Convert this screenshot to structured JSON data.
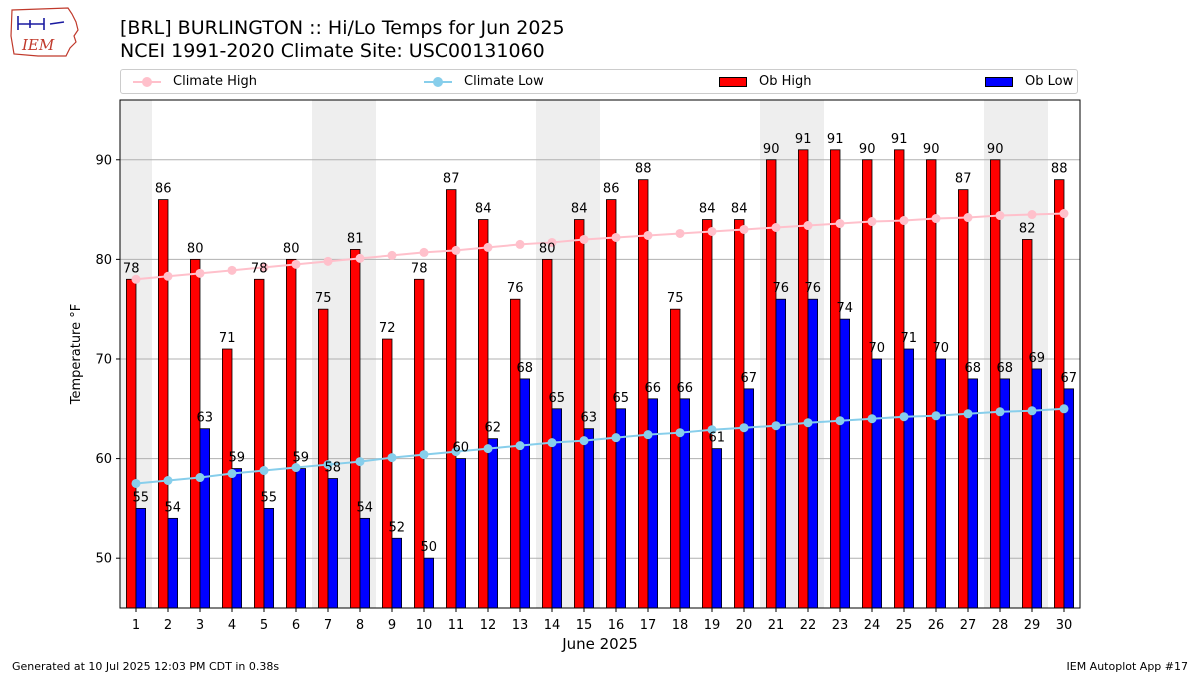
{
  "header": {
    "logo_text": "IEM",
    "title_line1": "[BRL] BURLINGTON :: Hi/Lo Temps for Jun 2025",
    "title_line2": "NCEI 1991-2020 Climate Site: USC00131060"
  },
  "legend": {
    "climate_high": "Climate High",
    "climate_low": "Climate Low",
    "ob_high": "Ob High",
    "ob_low": "Ob Low"
  },
  "colors": {
    "ob_high": "#ff0000",
    "ob_low": "#0000ff",
    "climate_high": "#ffc0cb",
    "climate_low": "#87ceeb",
    "weekend_shade": "#eeeeee",
    "grid": "#b0b0b0"
  },
  "chart_data": {
    "type": "bar",
    "xlabel": "June 2025",
    "ylabel": "Temperature °F",
    "ylim": [
      45,
      96
    ],
    "yticks": [
      50,
      60,
      70,
      80,
      90
    ],
    "grid": "horizontal",
    "legend_position": "top",
    "categories": [
      "1",
      "2",
      "3",
      "4",
      "5",
      "6",
      "7",
      "8",
      "9",
      "10",
      "11",
      "12",
      "13",
      "14",
      "15",
      "16",
      "17",
      "18",
      "19",
      "20",
      "21",
      "22",
      "23",
      "24",
      "25",
      "26",
      "27",
      "28",
      "29",
      "30"
    ],
    "shaded_days": [
      1,
      7,
      8,
      14,
      15,
      21,
      22,
      28,
      29
    ],
    "series": [
      {
        "name": "Ob High",
        "type": "bar",
        "values": [
          78,
          86,
          80,
          71,
          78,
          80,
          75,
          81,
          72,
          78,
          87,
          84,
          76,
          80,
          84,
          86,
          88,
          75,
          84,
          84,
          90,
          91,
          91,
          90,
          91,
          90,
          87,
          90,
          82,
          88
        ]
      },
      {
        "name": "Ob Low",
        "type": "bar",
        "values": [
          55,
          54,
          63,
          59,
          55,
          59,
          58,
          54,
          52,
          50,
          60,
          62,
          68,
          65,
          63,
          65,
          66,
          66,
          61,
          67,
          76,
          76,
          74,
          70,
          71,
          70,
          68,
          68,
          69,
          67
        ]
      },
      {
        "name": "Climate High",
        "type": "line",
        "values": [
          78.0,
          78.3,
          78.6,
          78.9,
          79.2,
          79.5,
          79.8,
          80.1,
          80.4,
          80.7,
          80.9,
          81.2,
          81.5,
          81.7,
          82.0,
          82.2,
          82.4,
          82.6,
          82.8,
          83.0,
          83.2,
          83.4,
          83.6,
          83.8,
          83.9,
          84.1,
          84.2,
          84.4,
          84.5,
          84.6
        ]
      },
      {
        "name": "Climate Low",
        "type": "line",
        "values": [
          57.5,
          57.8,
          58.1,
          58.5,
          58.8,
          59.1,
          59.4,
          59.7,
          60.1,
          60.4,
          60.7,
          61.0,
          61.3,
          61.6,
          61.8,
          62.1,
          62.4,
          62.6,
          62.9,
          63.1,
          63.3,
          63.6,
          63.8,
          64.0,
          64.2,
          64.3,
          64.5,
          64.7,
          64.8,
          65.0
        ]
      }
    ]
  },
  "footer": {
    "generated": "Generated at 10 Jul 2025 12:03 PM CDT in 0.38s",
    "app": "IEM Autoplot App #17"
  }
}
